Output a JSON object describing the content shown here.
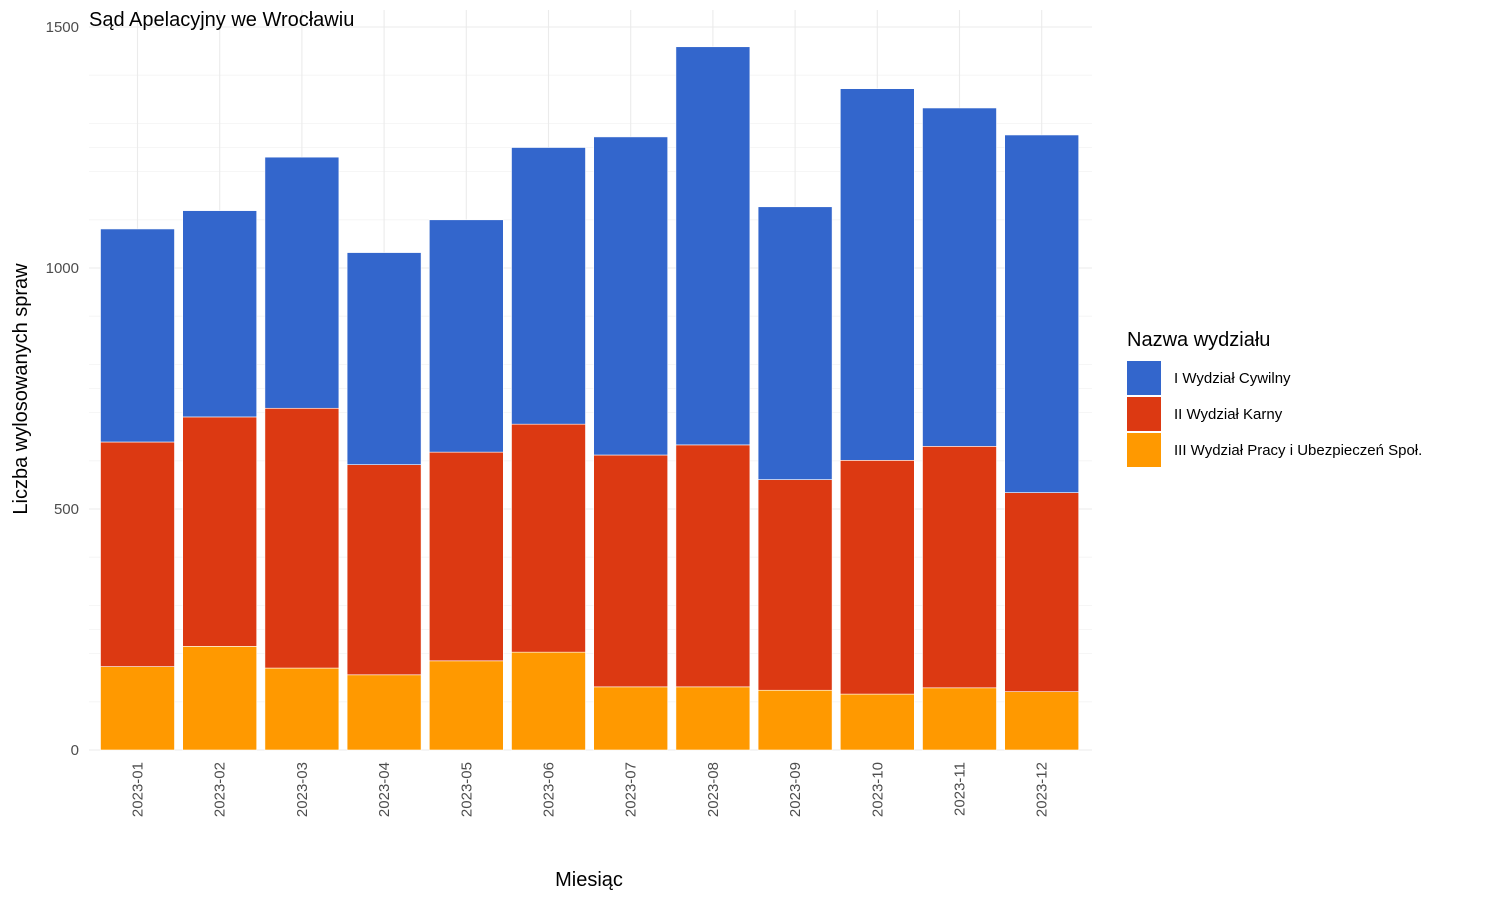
{
  "chart_data": {
    "type": "bar",
    "stacked": true,
    "title": "Sąd Apelacyjny we Wrocławiu",
    "xlabel": "Miesiąc",
    "ylabel": "Liczba wylosowanych spraw",
    "ylim": [
      0,
      1500
    ],
    "yticks": [
      "0",
      "500",
      "1000",
      "1500"
    ],
    "grid": true,
    "legend": {
      "title": "Nazwa wydziału",
      "position": "right"
    },
    "categories": [
      "2023-01",
      "2023-02",
      "2023-03",
      "2023-04",
      "2023-05",
      "2023-06",
      "2023-07",
      "2023-08",
      "2023-09",
      "2023-10",
      "2023-11",
      "2023-12"
    ],
    "series": [
      {
        "name": "III Wydział Pracy i Ubezpieczeń Społ.",
        "color": "#ff9900",
        "values": [
          173,
          215,
          170,
          156,
          185,
          203,
          131,
          131,
          124,
          116,
          129,
          121
        ]
      },
      {
        "name": "II Wydział Karny",
        "color": "#dc3912",
        "values": [
          466,
          476,
          539,
          436,
          433,
          473,
          481,
          502,
          437,
          485,
          501,
          413
        ]
      },
      {
        "name": "I Wydział Cywilny",
        "color": "#3366cc",
        "values": [
          442,
          428,
          521,
          440,
          482,
          574,
          660,
          826,
          566,
          771,
          702,
          742
        ]
      }
    ],
    "legend_order": [
      "I Wydział Cywilny",
      "II Wydział Karny",
      "III Wydział Pracy i Ubezpieczeń Społ."
    ]
  }
}
